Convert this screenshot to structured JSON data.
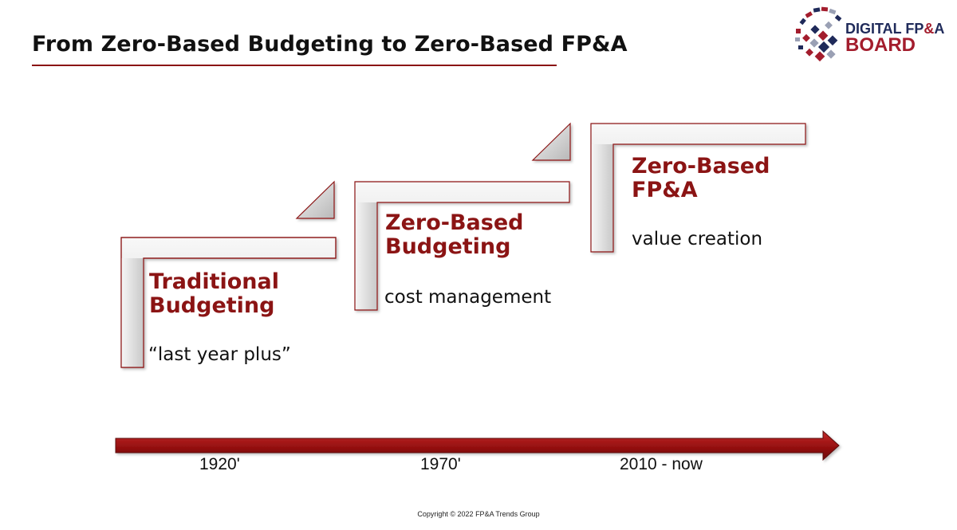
{
  "header": {
    "title": "From Zero-Based Budgeting to Zero-Based FP&A"
  },
  "logo": {
    "line1_text": "DIGITAL FP",
    "line1_amp": "&",
    "line1_end": "A",
    "line2": "BOARD",
    "colors": {
      "navy": "#1f2a5a",
      "red": "#a31d2d"
    }
  },
  "steps": [
    {
      "heading_line1": "Traditional",
      "heading_line2": "Budgeting",
      "description": "“last year plus”"
    },
    {
      "heading_line1": "Zero-Based",
      "heading_line2": "Budgeting",
      "description": "cost management"
    },
    {
      "heading_line1": "Zero-Based",
      "heading_line2": "FP&A",
      "description": "value creation"
    }
  ],
  "timeline": {
    "eras": [
      "1920'",
      "1970'",
      "2010 - now"
    ]
  },
  "footer": {
    "copyright": "Copyright © 2022 FP&A Trends Group"
  },
  "colors": {
    "accent_red": "#8b1414",
    "arrow_red": "#a01818",
    "step_gray": "#dcdcdc"
  }
}
